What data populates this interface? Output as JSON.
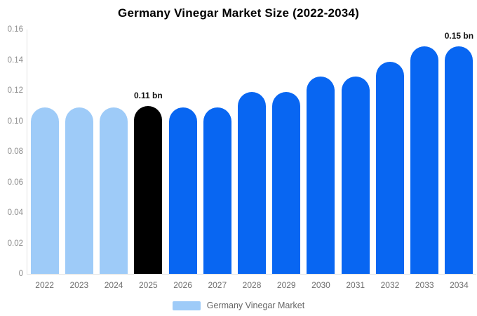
{
  "title": "Germany Vinegar Market Size (2022-2034)",
  "colors": {
    "light_blue": "#9ecbf8",
    "blue": "#0866f2",
    "black": "#000000",
    "axis_line": "#e2e2e2"
  },
  "legend": {
    "label": "Germany Vinegar Market",
    "swatch_color": "#9ecbf8"
  },
  "chart_data": {
    "type": "bar",
    "title": "Germany Vinegar Market Size (2022-2034)",
    "unit": "bn",
    "categories": [
      "2022",
      "2023",
      "2024",
      "2025",
      "2026",
      "2027",
      "2028",
      "2029",
      "2030",
      "2031",
      "2032",
      "2033",
      "2034"
    ],
    "values": [
      0.109,
      0.109,
      0.109,
      0.11,
      0.109,
      0.109,
      0.119,
      0.119,
      0.129,
      0.129,
      0.139,
      0.149,
      0.149
    ],
    "bar_colors": [
      "light_blue",
      "light_blue",
      "light_blue",
      "black",
      "blue",
      "blue",
      "blue",
      "blue",
      "blue",
      "blue",
      "blue",
      "blue",
      "blue"
    ],
    "annotations": [
      {
        "category": "2025",
        "text": "0.11 bn"
      },
      {
        "category": "2034",
        "text": "0.15 bn"
      }
    ],
    "ylim": [
      0,
      0.16
    ],
    "yticks": [
      "0",
      "0.02",
      "0.04",
      "0.06",
      "0.08",
      "0.10",
      "0.12",
      "0.14",
      "0.16"
    ],
    "grid": false,
    "legend_position": "bottom",
    "legend_entries": [
      "Germany Vinegar Market"
    ]
  }
}
